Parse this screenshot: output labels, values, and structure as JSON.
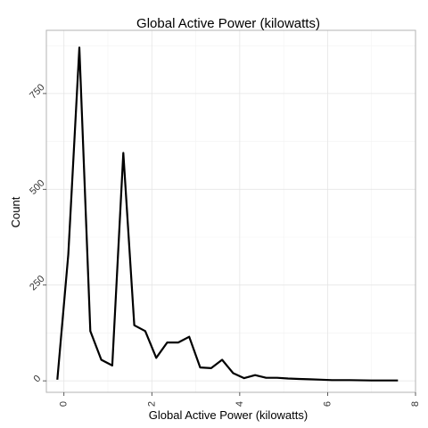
{
  "chart_data": {
    "type": "line",
    "title": "Global Active Power (kilowatts)",
    "xlabel": "Global Active Power (kilowatts)",
    "ylabel": "Count",
    "xlim": [
      -0.4,
      8.0
    ],
    "ylim": [
      -30,
      915
    ],
    "x_ticks": [
      {
        "value": 0,
        "label": "0"
      },
      {
        "value": 2,
        "label": "2"
      },
      {
        "value": 4,
        "label": "4"
      },
      {
        "value": 6,
        "label": "6"
      },
      {
        "value": 8,
        "label": "8"
      }
    ],
    "y_ticks": [
      {
        "value": 0,
        "label": "0"
      },
      {
        "value": 250,
        "label": "250"
      },
      {
        "value": 500,
        "label": "500"
      },
      {
        "value": 750,
        "label": "750"
      }
    ],
    "grid": true,
    "series": [
      {
        "color": "#000000",
        "x": [
          -0.15,
          0.1,
          0.35,
          0.6,
          0.85,
          1.1,
          1.35,
          1.6,
          1.85,
          2.1,
          2.35,
          2.6,
          2.85,
          3.1,
          3.35,
          3.6,
          3.85,
          4.1,
          4.35,
          4.6,
          4.85,
          5.1,
          5.35,
          5.6,
          5.85,
          6.1,
          6.5,
          7.0,
          7.6
        ],
        "y": [
          3,
          330,
          870,
          130,
          55,
          40,
          595,
          145,
          130,
          60,
          100,
          100,
          115,
          35,
          33,
          55,
          20,
          7,
          15,
          8,
          8,
          6,
          5,
          4,
          3,
          2,
          2,
          1,
          1
        ]
      }
    ]
  }
}
